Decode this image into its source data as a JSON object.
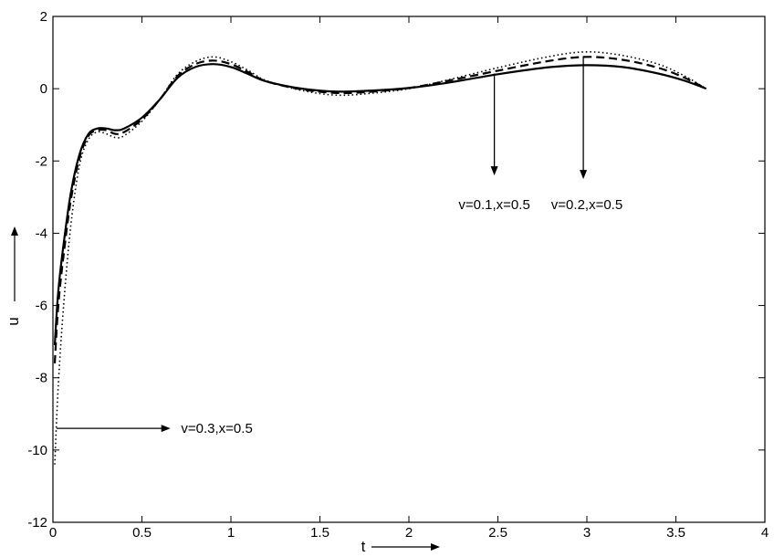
{
  "chart_data": {
    "type": "line",
    "title": "",
    "xlabel": "t",
    "ylabel": "u",
    "xlim": [
      0,
      4
    ],
    "ylim": [
      -12,
      2
    ],
    "grid": false,
    "xticks": [
      0,
      0.5,
      1,
      1.5,
      2,
      2.5,
      3,
      3.5,
      4
    ],
    "xtick_labels": [
      "0",
      "0.5",
      "1",
      "1.5",
      "2",
      "2.5",
      "3",
      "3.5",
      "4"
    ],
    "yticks": [
      2,
      0,
      -2,
      -4,
      -6,
      -8,
      -10,
      -12
    ],
    "ytick_labels": [
      "2",
      "0",
      "-2",
      "-4",
      "-6",
      "-8",
      "-10",
      "-12"
    ],
    "series": [
      {
        "style": "solid",
        "color": "#000000",
        "points": [
          [
            0.01,
            -7.1
          ],
          [
            0.03,
            -5.6
          ],
          [
            0.06,
            -4.3
          ],
          [
            0.1,
            -2.9
          ],
          [
            0.15,
            -1.8
          ],
          [
            0.2,
            -1.25
          ],
          [
            0.25,
            -1.1
          ],
          [
            0.3,
            -1.1
          ],
          [
            0.35,
            -1.15
          ],
          [
            0.4,
            -1.1
          ],
          [
            0.5,
            -0.8
          ],
          [
            0.6,
            -0.3
          ],
          [
            0.7,
            0.3
          ],
          [
            0.8,
            0.6
          ],
          [
            0.9,
            0.68
          ],
          [
            1.0,
            0.6
          ],
          [
            1.1,
            0.4
          ],
          [
            1.2,
            0.2
          ],
          [
            1.4,
            0.0
          ],
          [
            1.6,
            -0.08
          ],
          [
            1.8,
            -0.05
          ],
          [
            2.0,
            0.02
          ],
          [
            2.2,
            0.15
          ],
          [
            2.5,
            0.4
          ],
          [
            2.8,
            0.6
          ],
          [
            3.0,
            0.65
          ],
          [
            3.2,
            0.6
          ],
          [
            3.4,
            0.42
          ],
          [
            3.55,
            0.22
          ],
          [
            3.67,
            0.0
          ]
        ]
      },
      {
        "style": "dashed",
        "color": "#000000",
        "points": [
          [
            0.01,
            -7.6
          ],
          [
            0.03,
            -6.0
          ],
          [
            0.06,
            -4.6
          ],
          [
            0.1,
            -3.1
          ],
          [
            0.15,
            -1.9
          ],
          [
            0.2,
            -1.3
          ],
          [
            0.25,
            -1.15
          ],
          [
            0.3,
            -1.15
          ],
          [
            0.35,
            -1.25
          ],
          [
            0.4,
            -1.2
          ],
          [
            0.5,
            -0.85
          ],
          [
            0.6,
            -0.3
          ],
          [
            0.7,
            0.35
          ],
          [
            0.8,
            0.68
          ],
          [
            0.9,
            0.78
          ],
          [
            1.0,
            0.68
          ],
          [
            1.1,
            0.45
          ],
          [
            1.2,
            0.2
          ],
          [
            1.4,
            -0.02
          ],
          [
            1.6,
            -0.12
          ],
          [
            1.8,
            -0.08
          ],
          [
            2.0,
            0.02
          ],
          [
            2.2,
            0.2
          ],
          [
            2.5,
            0.5
          ],
          [
            2.8,
            0.78
          ],
          [
            3.0,
            0.88
          ],
          [
            3.2,
            0.8
          ],
          [
            3.4,
            0.58
          ],
          [
            3.55,
            0.3
          ],
          [
            3.67,
            0.0
          ]
        ]
      },
      {
        "style": "dotted",
        "color": "#000000",
        "points": [
          [
            0.01,
            -10.4
          ],
          [
            0.03,
            -8.2
          ],
          [
            0.06,
            -6.0
          ],
          [
            0.1,
            -3.8
          ],
          [
            0.15,
            -2.1
          ],
          [
            0.2,
            -1.4
          ],
          [
            0.25,
            -1.2
          ],
          [
            0.3,
            -1.25
          ],
          [
            0.35,
            -1.35
          ],
          [
            0.4,
            -1.3
          ],
          [
            0.5,
            -0.9
          ],
          [
            0.6,
            -0.3
          ],
          [
            0.7,
            0.4
          ],
          [
            0.8,
            0.75
          ],
          [
            0.9,
            0.88
          ],
          [
            1.0,
            0.75
          ],
          [
            1.1,
            0.5
          ],
          [
            1.2,
            0.22
          ],
          [
            1.4,
            -0.05
          ],
          [
            1.6,
            -0.18
          ],
          [
            1.8,
            -0.12
          ],
          [
            2.0,
            0.0
          ],
          [
            2.2,
            0.22
          ],
          [
            2.5,
            0.58
          ],
          [
            2.8,
            0.9
          ],
          [
            3.0,
            1.02
          ],
          [
            3.2,
            0.92
          ],
          [
            3.4,
            0.68
          ],
          [
            3.55,
            0.35
          ],
          [
            3.67,
            0.0
          ]
        ]
      }
    ],
    "annotations": [
      {
        "text": "v=0.1,x=0.5",
        "arrow": "down",
        "x": 2.48,
        "y_from": 0.42,
        "y_to": -2.4,
        "label_x": 2.48,
        "label_y": -3.2
      },
      {
        "text": "v=0.2,x=0.5",
        "arrow": "down",
        "x": 2.98,
        "y_from": 0.9,
        "y_to": -2.5,
        "label_x": 3.0,
        "label_y": -3.2
      },
      {
        "text": "v=0.3,x=0.5",
        "arrow": "right",
        "y": -9.4,
        "x_from": 0.02,
        "x_to": 0.66,
        "label_x": 0.72,
        "label_y": -9.4
      }
    ]
  }
}
